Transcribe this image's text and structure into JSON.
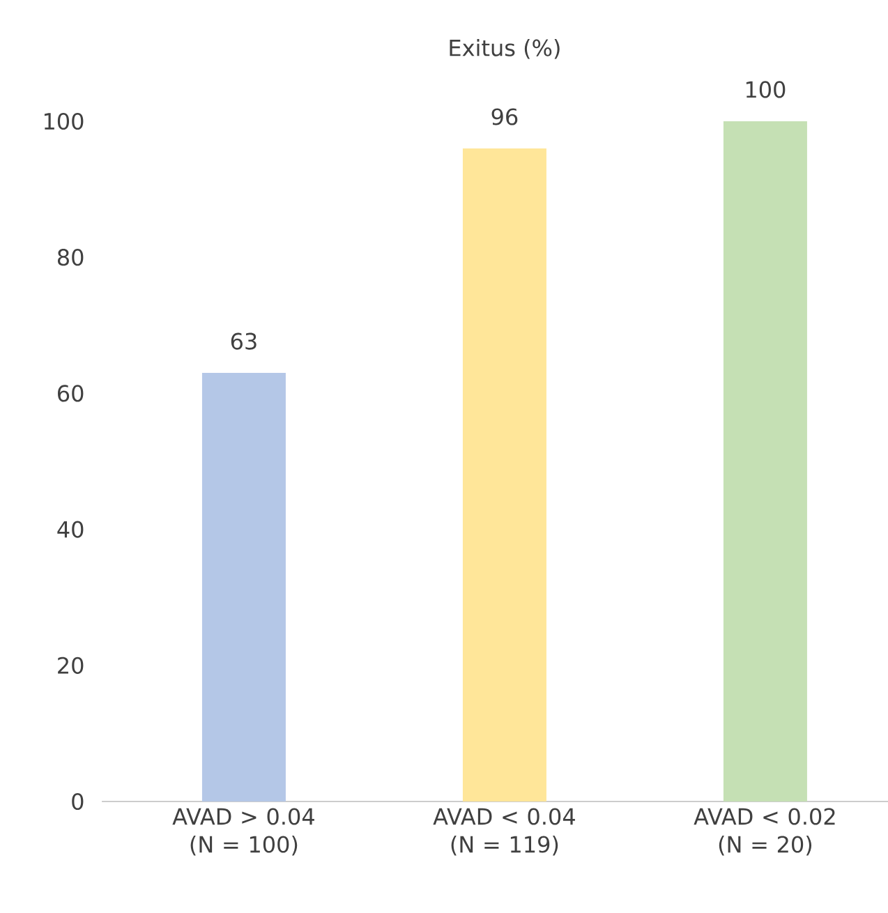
{
  "chart_data": {
    "type": "bar",
    "title": "Exitus (%)",
    "categories": [
      "AVAD > 0.04 (N = 100)",
      "AVAD < 0.04 (N = 119)",
      "AVAD < 0.02 (N = 20)"
    ],
    "values": [
      63,
      96,
      100
    ],
    "colors": [
      "#b4c7e7",
      "#ffe699",
      "#c5e0b4"
    ],
    "ylim": [
      0,
      100
    ],
    "yticks": [
      0,
      20,
      40,
      60,
      80,
      100
    ],
    "grid": false,
    "data_labels": true
  }
}
